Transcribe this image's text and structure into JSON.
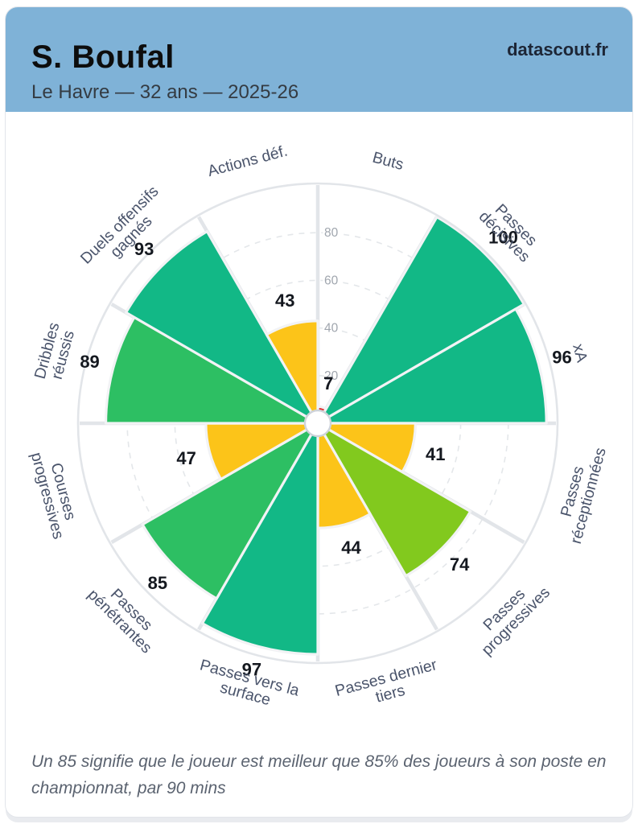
{
  "header": {
    "title": "S. Boufal",
    "subtitle": "Le Havre — 32 ans — 2025-26",
    "brand": "datascout.fr",
    "background_color": "#7fb2d7"
  },
  "footer": {
    "note": "Un 85 signifie que le joueur est meilleur que 85% des joueurs à son poste en championnat, par 90 mins"
  },
  "colors": {
    "excellent": "#12b886",
    "good": "#2dbf63",
    "average": "#82c91e",
    "poor": "#fcc419",
    "very_poor": "#e03131",
    "grid": "#e4e7ea",
    "spoke": "#e2e5e9",
    "ring": "#e2e5e9",
    "tick_text": "#a0a6ae",
    "label_text": "#4a546b",
    "value_text": "#14181f"
  },
  "chart_data": {
    "type": "pizza-polar-bar",
    "title": "",
    "axis_range": [
      0,
      100
    ],
    "ticks": [
      20,
      40,
      60,
      80
    ],
    "grid": "dashed-circles",
    "slices": [
      {
        "label_lines": [
          "Buts"
        ],
        "value": 7,
        "color": "#e03131"
      },
      {
        "label_lines": [
          "Passes",
          "décisives"
        ],
        "value": 100,
        "color": "#12b886"
      },
      {
        "label_lines": [
          "xA"
        ],
        "value": 96,
        "color": "#12b886"
      },
      {
        "label_lines": [
          "Passes",
          "réceptionnées"
        ],
        "value": 41,
        "color": "#fcc419"
      },
      {
        "label_lines": [
          "Passes",
          "progressives"
        ],
        "value": 74,
        "color": "#82c91e"
      },
      {
        "label_lines": [
          "Passes dernier",
          "tiers"
        ],
        "value": 44,
        "color": "#fcc419"
      },
      {
        "label_lines": [
          "Passes vers la",
          "surface"
        ],
        "value": 97,
        "color": "#12b886"
      },
      {
        "label_lines": [
          "Passes",
          "pénétrantes"
        ],
        "value": 85,
        "color": "#2dbf63"
      },
      {
        "label_lines": [
          "Courses",
          "progressives"
        ],
        "value": 47,
        "color": "#fcc419"
      },
      {
        "label_lines": [
          "Dribbles",
          "réussis"
        ],
        "value": 89,
        "color": "#2dbf63"
      },
      {
        "label_lines": [
          "Duels offensifs",
          "gagnés"
        ],
        "value": 93,
        "color": "#12b886"
      },
      {
        "label_lines": [
          "Actions déf."
        ],
        "value": 43,
        "color": "#fcc419"
      }
    ]
  }
}
